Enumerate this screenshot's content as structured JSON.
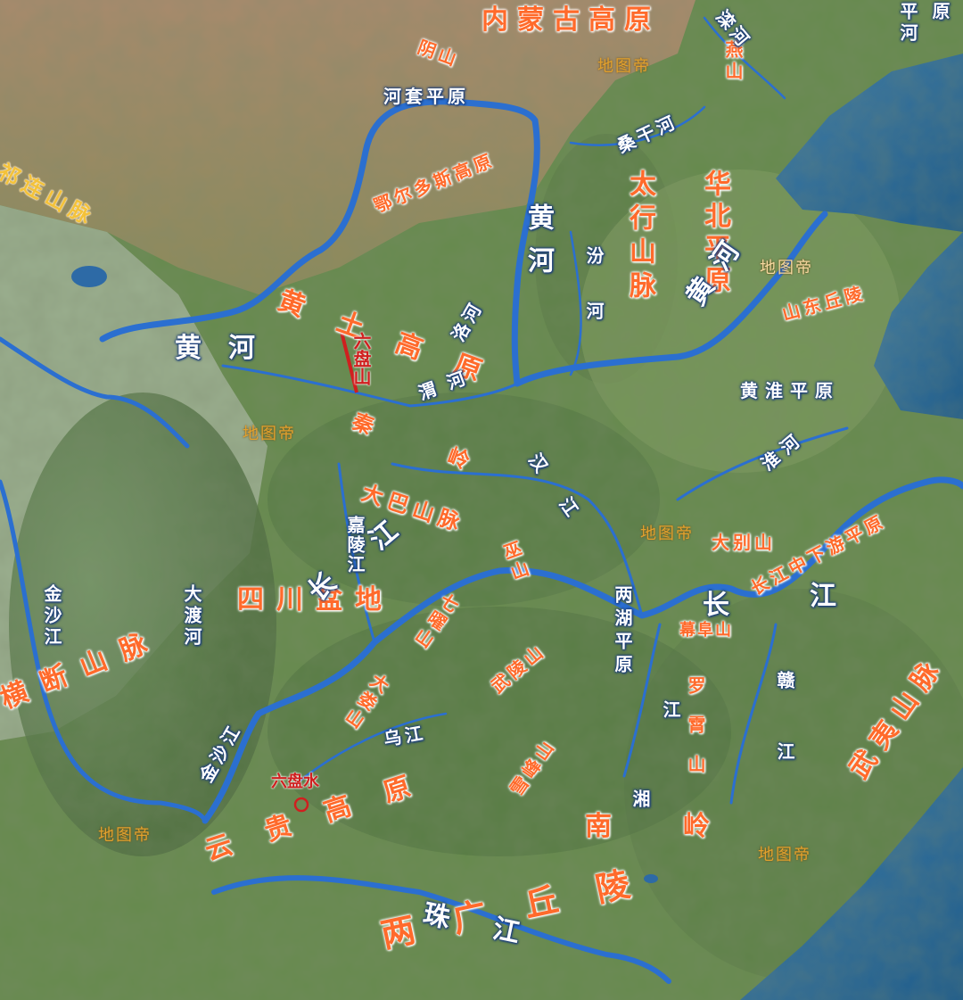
{
  "map": {
    "watermark": "地图帝",
    "labels": {
      "inner_mongolia": "内蒙古高原",
      "yinshan": "阴山",
      "hetao": "河套平原",
      "ordos": "鄂尔多斯高原",
      "qilian": "祁连山脉",
      "yanshan": "燕山",
      "luanhe": "滦河",
      "pinghe": "平河",
      "yuan": "原",
      "sangganhe": "桑干河",
      "taihang": "太行山脉",
      "huabei": "华北平原",
      "fenhe": "汾河",
      "huanghe_north": "黄河",
      "huanghe_west": "黄河",
      "huanghe_east": "黄河",
      "loess": "黄土高原",
      "liupan": "六盘山",
      "luohe": "洛河",
      "weihe": "渭河",
      "shandong": "山东丘陵",
      "huanghuai": "黄淮平原",
      "qinling": "秦岭",
      "huaihe": "淮河",
      "hanjiang": "汉江",
      "dabashan": "大巴山脉",
      "jialingjiang": "嘉陵江",
      "dabieshan": "大别山",
      "yangtze_lower": "长江中下游平原",
      "jiang": "江",
      "wushan": "巫山",
      "sichuan": "四川盆地",
      "changjiang": "长江",
      "jinsha": "金沙江",
      "dadu": "大渡河",
      "qiyueshan": "七曜山",
      "lianghu": "两湖平原",
      "changjiang_mid": "长",
      "mufu": "幕阜山",
      "wulingshan": "武陵山",
      "dalou": "大娄山",
      "hengduan": "横断山脉",
      "wujiang": "乌江",
      "jinsha_lower": "金沙江",
      "liupanshui": "六盘水",
      "xuefeng": "雪峰山",
      "luoxiao": "罗霄山",
      "xiangjiang": "江",
      "xiangjiang2": "湘",
      "ganjiang": "赣江",
      "wuyi": "武夷山脉",
      "yungui": "云贵高原",
      "nanling": "南岭",
      "zhujiang": "珠江",
      "lingnan": "两广丘陵"
    }
  }
}
